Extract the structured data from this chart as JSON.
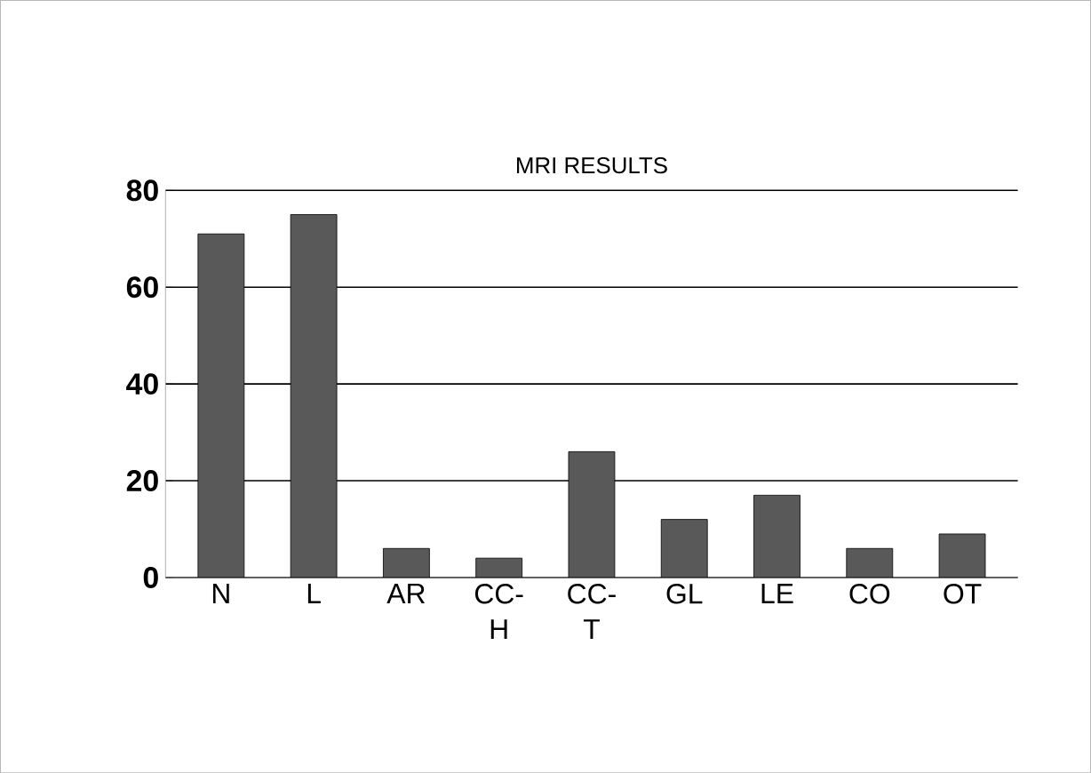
{
  "chart_data": {
    "type": "bar",
    "title": "MRI RESULTS",
    "categories": [
      "N",
      "L",
      "AR",
      "CC-H",
      "CC-T",
      "GL",
      "LE",
      "CO",
      "OT"
    ],
    "values": [
      71,
      75,
      6,
      4,
      26,
      12,
      17,
      6,
      9
    ],
    "color": "#595959",
    "ylim": [
      0,
      80
    ],
    "yticks": [
      0,
      20,
      40,
      60,
      80
    ],
    "grid": "y"
  }
}
